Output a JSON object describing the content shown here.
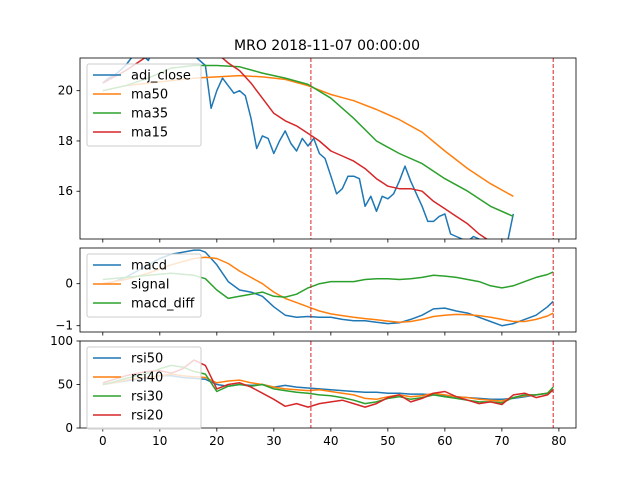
{
  "chart_data": {
    "title": "MRO 2018-11-07 00:00:00",
    "type": "line",
    "x_axis": {
      "range": [
        -4,
        83
      ],
      "ticks": [
        0,
        10,
        20,
        30,
        40,
        50,
        60,
        70,
        80
      ],
      "tick_labels": [
        "0",
        "10",
        "20",
        "30",
        "40",
        "50",
        "60",
        "70",
        "80"
      ]
    },
    "vlines": [
      36.5,
      79
    ],
    "vline_color": "#d62728",
    "panels": [
      {
        "name": "price",
        "ylim": [
          14.1,
          21.3
        ],
        "yticks": [
          16,
          18,
          20
        ],
        "ytick_labels": [
          "16",
          "18",
          "20"
        ],
        "legend_position": "upper-left",
        "series": [
          {
            "name": "adj_close",
            "color": "#1f77b4",
            "x": [
              0,
              1,
              2,
              3,
              4,
              5,
              6,
              7,
              8,
              9,
              10,
              11,
              12,
              13,
              14,
              15,
              16,
              17,
              18,
              19,
              20,
              21,
              22,
              23,
              24,
              25,
              26,
              27,
              28,
              29,
              30,
              31,
              32,
              33,
              34,
              35,
              36,
              37,
              38,
              39,
              40,
              41,
              42,
              43,
              44,
              45,
              46,
              47,
              48,
              49,
              50,
              51,
              52,
              53,
              54,
              55,
              56,
              57,
              58,
              59,
              60,
              61,
              62,
              63,
              64,
              65,
              66,
              67,
              68,
              69,
              70,
              71,
              72
            ],
            "values": [
              20.3,
              20.5,
              20.6,
              20.8,
              21.0,
              21.3,
              21.6,
              21.4,
              21.2,
              21.8,
              21.6,
              21.9,
              22.1,
              21.9,
              21.8,
              21.6,
              21.4,
              21.2,
              21.0,
              19.3,
              20.0,
              20.5,
              20.2,
              19.9,
              20.0,
              19.8,
              18.9,
              17.7,
              18.2,
              18.1,
              17.5,
              18.0,
              18.4,
              17.9,
              17.6,
              18.1,
              17.8,
              18.1,
              17.5,
              17.3,
              16.6,
              15.9,
              16.1,
              16.6,
              16.6,
              16.5,
              15.4,
              15.8,
              15.2,
              15.8,
              15.7,
              15.9,
              16.4,
              17.0,
              16.4,
              15.9,
              15.4,
              14.8,
              14.8,
              15.0,
              15.1,
              14.3,
              14.2,
              14.1,
              14.0,
              14.2,
              14.1,
              13.9,
              13.9,
              13.9,
              14.1,
              14.0,
              15.1
            ]
          },
          {
            "name": "ma50",
            "color": "#ff7f0e",
            "x": [
              0,
              4,
              8,
              12,
              16,
              20,
              24,
              28,
              32,
              36,
              40,
              44,
              48,
              52,
              56,
              60,
              64,
              68,
              72
            ],
            "values": [
              20.0,
              20.2,
              20.3,
              20.4,
              20.5,
              20.55,
              20.6,
              20.55,
              20.45,
              20.2,
              19.85,
              19.6,
              19.25,
              18.85,
              18.35,
              17.6,
              16.9,
              16.3,
              15.8
            ]
          },
          {
            "name": "ma35",
            "color": "#2ca02c",
            "x": [
              0,
              4,
              8,
              12,
              16,
              20,
              24,
              28,
              32,
              36,
              40,
              44,
              48,
              52,
              56,
              60,
              64,
              68,
              72
            ],
            "values": [
              20.0,
              20.2,
              20.5,
              20.9,
              21.0,
              21.0,
              20.95,
              20.7,
              20.5,
              20.25,
              19.7,
              18.9,
              18.0,
              17.5,
              17.1,
              16.5,
              16.0,
              15.4,
              15.0
            ]
          },
          {
            "name": "ma15",
            "color": "#d62728",
            "x": [
              0,
              4,
              8,
              12,
              16,
              20,
              22,
              24,
              26,
              28,
              30,
              32,
              34,
              36,
              38,
              40,
              42,
              44,
              46,
              48,
              50,
              52,
              54,
              56,
              58,
              60,
              62,
              64,
              66,
              68,
              70,
              72
            ],
            "values": [
              20.3,
              20.8,
              21.4,
              21.9,
              21.9,
              21.5,
              21.1,
              20.8,
              20.3,
              19.7,
              19.1,
              18.8,
              18.6,
              18.3,
              18.0,
              17.6,
              17.4,
              17.2,
              16.9,
              16.5,
              16.2,
              16.1,
              16.1,
              16.0,
              15.6,
              15.3,
              15.0,
              14.7,
              14.3,
              14.0,
              13.8,
              13.6
            ]
          }
        ]
      },
      {
        "name": "macd",
        "ylim": [
          -1.15,
          0.85
        ],
        "yticks": [
          -1,
          0
        ],
        "ytick_labels": [
          "−1",
          "0"
        ],
        "legend_position": "upper-left",
        "series": [
          {
            "name": "macd",
            "color": "#1f77b4",
            "x": [
              0,
              2,
              4,
              6,
              8,
              10,
              12,
              14,
              16,
              17,
              18,
              20,
              22,
              24,
              26,
              28,
              30,
              32,
              34,
              36,
              38,
              40,
              42,
              44,
              46,
              48,
              50,
              52,
              54,
              56,
              58,
              60,
              62,
              64,
              66,
              68,
              70,
              72,
              74,
              76,
              78,
              79
            ],
            "values": [
              0.0,
              0.05,
              0.15,
              0.3,
              0.45,
              0.6,
              0.7,
              0.75,
              0.8,
              0.8,
              0.75,
              0.45,
              0.05,
              -0.15,
              -0.2,
              -0.3,
              -0.55,
              -0.75,
              -0.8,
              -0.78,
              -0.8,
              -0.8,
              -0.85,
              -0.88,
              -0.88,
              -0.92,
              -0.95,
              -0.93,
              -0.85,
              -0.75,
              -0.6,
              -0.58,
              -0.65,
              -0.7,
              -0.8,
              -0.9,
              -1.0,
              -0.95,
              -0.85,
              -0.75,
              -0.55,
              -0.42
            ]
          },
          {
            "name": "signal",
            "color": "#ff7f0e",
            "x": [
              0,
              4,
              8,
              12,
              16,
              18,
              20,
              22,
              24,
              26,
              28,
              30,
              32,
              34,
              36,
              38,
              40,
              42,
              44,
              46,
              48,
              50,
              52,
              54,
              56,
              58,
              60,
              62,
              64,
              66,
              68,
              70,
              72,
              74,
              76,
              78,
              79
            ],
            "values": [
              0.0,
              0.1,
              0.25,
              0.45,
              0.6,
              0.63,
              0.6,
              0.48,
              0.3,
              0.15,
              0.0,
              -0.2,
              -0.35,
              -0.45,
              -0.55,
              -0.65,
              -0.72,
              -0.76,
              -0.8,
              -0.83,
              -0.86,
              -0.89,
              -0.92,
              -0.9,
              -0.85,
              -0.78,
              -0.75,
              -0.73,
              -0.74,
              -0.76,
              -0.8,
              -0.85,
              -0.9,
              -0.9,
              -0.85,
              -0.77,
              -0.7
            ]
          },
          {
            "name": "macd_diff",
            "color": "#2ca02c",
            "x": [
              0,
              4,
              8,
              12,
              16,
              18,
              20,
              22,
              24,
              26,
              28,
              30,
              32,
              34,
              36,
              38,
              40,
              42,
              44,
              46,
              48,
              50,
              52,
              54,
              56,
              58,
              60,
              62,
              64,
              66,
              68,
              70,
              72,
              74,
              76,
              78,
              79
            ],
            "values": [
              0.1,
              0.15,
              0.2,
              0.25,
              0.2,
              0.12,
              -0.15,
              -0.35,
              -0.3,
              -0.25,
              -0.2,
              -0.3,
              -0.32,
              -0.25,
              -0.1,
              0.0,
              0.05,
              0.05,
              0.05,
              0.1,
              0.12,
              0.12,
              0.1,
              0.12,
              0.15,
              0.2,
              0.18,
              0.15,
              0.1,
              0.05,
              -0.05,
              -0.1,
              -0.05,
              0.05,
              0.15,
              0.22,
              0.28
            ]
          }
        ]
      },
      {
        "name": "rsi",
        "ylim": [
          0,
          100
        ],
        "yticks": [
          0,
          50,
          100
        ],
        "ytick_labels": [
          "0",
          "50",
          "100"
        ],
        "legend_position": "upper-left",
        "series": [
          {
            "name": "rsi50",
            "color": "#1f77b4",
            "x": [
              0,
              2,
              4,
              6,
              8,
              10,
              12,
              14,
              16,
              18,
              20,
              22,
              24,
              26,
              28,
              30,
              32,
              34,
              36,
              38,
              40,
              42,
              44,
              46,
              48,
              50,
              52,
              54,
              56,
              58,
              60,
              62,
              64,
              66,
              68,
              70,
              72,
              74,
              76,
              78,
              79
            ],
            "values": [
              50,
              52,
              54,
              56,
              58,
              60,
              60,
              58,
              57,
              56,
              50,
              48,
              50,
              49,
              50,
              47,
              49,
              47,
              46,
              45,
              44,
              43,
              42,
              41,
              41,
              40,
              40,
              39,
              39,
              38,
              37,
              36,
              35,
              34,
              33,
              33,
              34,
              36,
              38,
              40,
              43
            ]
          },
          {
            "name": "rsi40",
            "color": "#ff7f0e",
            "x": [
              0,
              2,
              4,
              6,
              8,
              10,
              12,
              14,
              16,
              18,
              20,
              22,
              24,
              26,
              28,
              30,
              32,
              34,
              36,
              38,
              40,
              42,
              44,
              46,
              48,
              50,
              52,
              54,
              56,
              58,
              60,
              62,
              64,
              66,
              68,
              70,
              72,
              74,
              76,
              78,
              79
            ],
            "values": [
              50,
              52,
              55,
              57,
              58,
              60,
              62,
              60,
              59,
              58,
              52,
              54,
              55,
              52,
              50,
              47,
              45,
              44,
              43,
              44,
              42,
              40,
              38,
              34,
              33,
              36,
              38,
              36,
              37,
              40,
              38,
              36,
              35,
              33,
              32,
              31,
              35,
              37,
              38,
              40,
              44
            ]
          },
          {
            "name": "rsi30",
            "color": "#2ca02c",
            "x": [
              0,
              2,
              4,
              6,
              8,
              10,
              12,
              14,
              16,
              18,
              20,
              22,
              24,
              26,
              28,
              30,
              32,
              34,
              36,
              38,
              40,
              42,
              44,
              46,
              48,
              50,
              52,
              54,
              56,
              58,
              60,
              62,
              64,
              66,
              68,
              70,
              72,
              74,
              76,
              78,
              79
            ],
            "values": [
              50,
              53,
              57,
              60,
              63,
              68,
              72,
              70,
              65,
              62,
              42,
              48,
              50,
              48,
              50,
              45,
              43,
              41,
              40,
              38,
              37,
              35,
              32,
              28,
              30,
              34,
              36,
              33,
              35,
              38,
              36,
              34,
              32,
              30,
              30,
              29,
              35,
              38,
              38,
              40,
              47
            ]
          },
          {
            "name": "rsi20",
            "color": "#d62728",
            "x": [
              0,
              2,
              4,
              6,
              8,
              10,
              12,
              14,
              16,
              18,
              20,
              22,
              24,
              26,
              28,
              30,
              32,
              34,
              36,
              38,
              40,
              42,
              44,
              46,
              48,
              50,
              52,
              54,
              56,
              58,
              60,
              62,
              64,
              66,
              68,
              70,
              72,
              74,
              76,
              78,
              79
            ],
            "values": [
              52,
              56,
              60,
              63,
              65,
              66,
              63,
              68,
              78,
              72,
              45,
              50,
              52,
              47,
              40,
              33,
              25,
              28,
              24,
              28,
              30,
              32,
              28,
              24,
              28,
              35,
              38,
              30,
              34,
              40,
              42,
              36,
              32,
              28,
              30,
              27,
              38,
              40,
              35,
              38,
              44
            ]
          }
        ]
      }
    ]
  }
}
